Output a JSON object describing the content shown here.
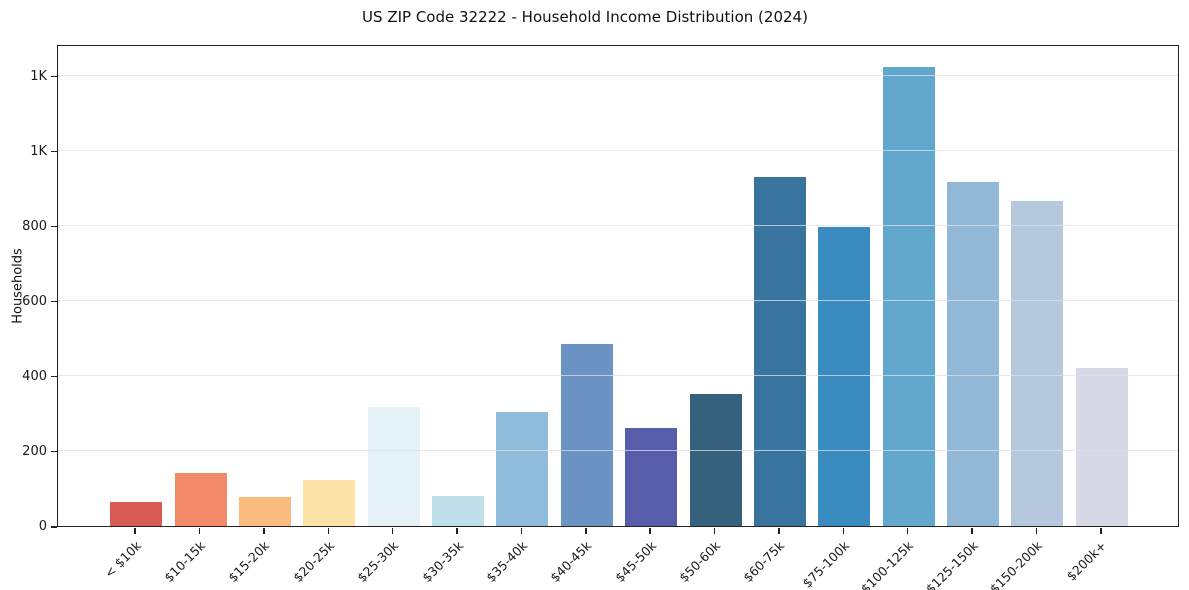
{
  "chart_data": {
    "type": "bar",
    "title": "US ZIP Code 32222 - Household Income Distribution (2024)",
    "xlabel": "",
    "ylabel": "Households",
    "categories": [
      "< $10k",
      "$10-15k",
      "$15-20k",
      "$20-25k",
      "$25-30k",
      "$30-35k",
      "$35-40k",
      "$40-45k",
      "$45-50k",
      "$50-60k",
      "$60-75k",
      "$75-100k",
      "$100-125k",
      "$125-150k",
      "$150-200k",
      "$200k+"
    ],
    "values": [
      64,
      142,
      78,
      124,
      318,
      80,
      304,
      486,
      260,
      351,
      930,
      796,
      1224,
      916,
      867,
      421
    ],
    "bar_colors": [
      "#d85c55",
      "#f28a6a",
      "#fabc7e",
      "#fde3a5",
      "#e4f1f7",
      "#bfe0ea",
      "#90bcdc",
      "#6b93c4",
      "#575cab",
      "#35617c",
      "#38749e",
      "#398bc0",
      "#62a8cc",
      "#92b8d8",
      "#b5c8dd",
      "#d7dae6"
    ],
    "ylim": [
      0,
      1285
    ],
    "yticks": {
      "values": [
        0,
        200,
        400,
        600,
        800,
        1000,
        1200
      ],
      "labels": [
        "0",
        "200",
        "400",
        "600",
        "800",
        "1K",
        "1K"
      ]
    },
    "grid": "horizontal",
    "legend": "none"
  },
  "colors": {
    "background": "#ffffff",
    "spine": "#222222",
    "gridline": "#e0e2e8",
    "text": "#1a1a1a"
  }
}
